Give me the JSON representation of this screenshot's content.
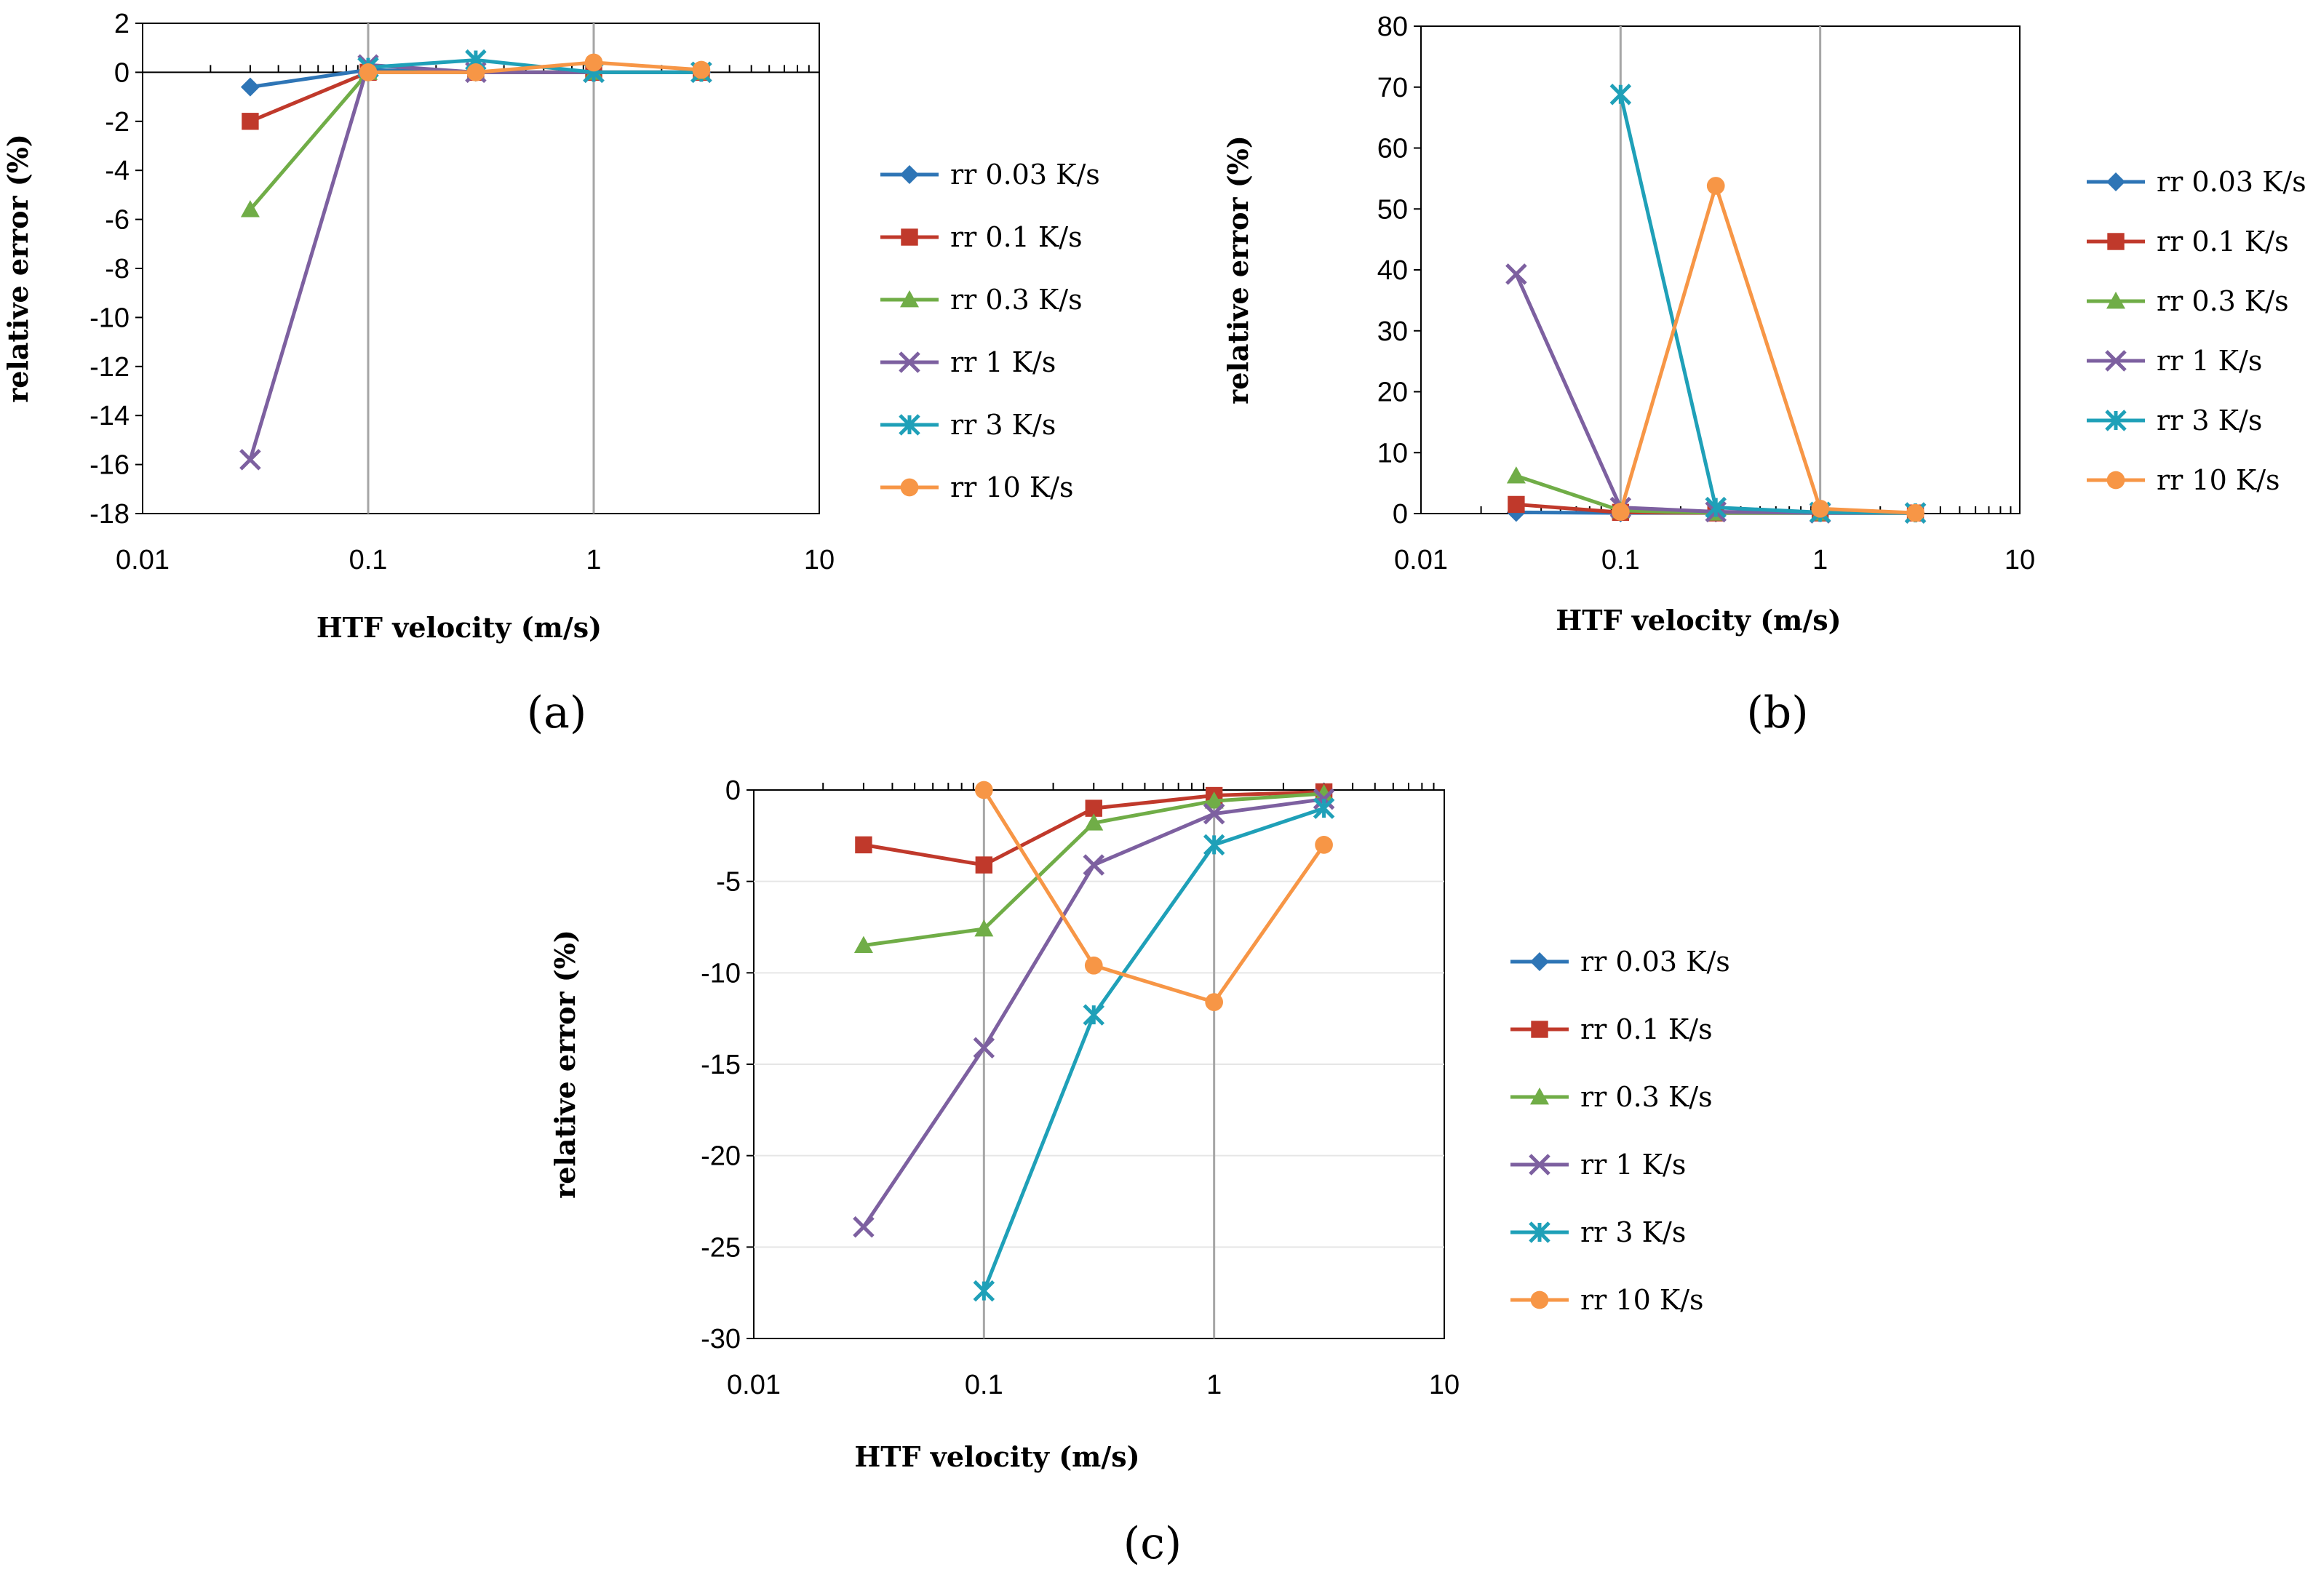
{
  "chart_data": [
    {
      "type": "line",
      "panel": "a",
      "caption": "(a)",
      "xlabel": "HTF velocity (m/s)",
      "ylabel": "relative error (%)",
      "xscale": "log",
      "xlim": [
        0.01,
        10
      ],
      "ylim": [
        -18,
        2
      ],
      "xticks": [
        0.01,
        0.1,
        1,
        10
      ],
      "xtick_labels": [
        "0.01",
        "0.1",
        "1",
        "10"
      ],
      "yticks": [
        2,
        0,
        -2,
        -4,
        -6,
        -8,
        -10,
        -12,
        -14,
        -16,
        -18
      ],
      "ytick_labels": [
        "2",
        "0",
        "-2",
        "-4",
        "-6",
        "-8",
        "-10",
        "-12",
        "-14",
        "-16",
        "-18"
      ],
      "legend_position": "right",
      "x": [
        0.03,
        0.1,
        0.3,
        1,
        3
      ],
      "series": [
        {
          "name": "rr 0.03 K/s",
          "color": "#2E75B6",
          "marker": "diamond",
          "values": [
            -0.6,
            0.1,
            0.0,
            0.0,
            0.0
          ]
        },
        {
          "name": "rr 0.1 K/s",
          "color": "#C0392B",
          "marker": "square",
          "values": [
            -2.0,
            0.0,
            0.0,
            0.0,
            0.0
          ]
        },
        {
          "name": "rr 0.3 K/s",
          "color": "#70AD47",
          "marker": "triangle",
          "values": [
            -5.6,
            0.0,
            0.0,
            0.0,
            0.0
          ]
        },
        {
          "name": "rr 1 K/s",
          "color": "#7D60A0",
          "marker": "x",
          "values": [
            -15.8,
            0.3,
            0.0,
            0.0,
            0.0
          ]
        },
        {
          "name": "rr 3 K/s",
          "color": "#1FA0B8",
          "marker": "star",
          "values": [
            null,
            0.2,
            0.5,
            0.0,
            0.0
          ]
        },
        {
          "name": "rr 10 K/s",
          "color": "#F79646",
          "marker": "circle",
          "values": [
            null,
            0.0,
            0.0,
            0.4,
            0.1
          ]
        }
      ]
    },
    {
      "type": "line",
      "panel": "b",
      "caption": "(b)",
      "xlabel": "HTF velocity (m/s)",
      "ylabel": "relative error (%)",
      "xscale": "log",
      "xlim": [
        0.01,
        10
      ],
      "ylim": [
        0,
        80
      ],
      "xticks": [
        0.01,
        0.1,
        1,
        10
      ],
      "xtick_labels": [
        "0.01",
        "0.1",
        "1",
        "10"
      ],
      "yticks": [
        80,
        70,
        60,
        50,
        40,
        30,
        20,
        10,
        0
      ],
      "ytick_labels": [
        "80",
        "70",
        "60",
        "50",
        "40",
        "30",
        "20",
        "10",
        "0"
      ],
      "legend_position": "right",
      "x": [
        0.03,
        0.1,
        0.3,
        1,
        3
      ],
      "series": [
        {
          "name": "rr 0.03 K/s",
          "color": "#2E75B6",
          "marker": "diamond",
          "values": [
            0.2,
            0.1,
            0.1,
            0.1,
            0.1
          ]
        },
        {
          "name": "rr 0.1 K/s",
          "color": "#C0392B",
          "marker": "square",
          "values": [
            1.5,
            0.2,
            0.1,
            0.1,
            0.1
          ]
        },
        {
          "name": "rr 0.3 K/s",
          "color": "#70AD47",
          "marker": "triangle",
          "values": [
            6.2,
            0.5,
            0.1,
            0.1,
            0.1
          ]
        },
        {
          "name": "rr 1 K/s",
          "color": "#7D60A0",
          "marker": "x",
          "values": [
            39.3,
            1.0,
            0.3,
            0.1,
            0.1
          ]
        },
        {
          "name": "rr 3 K/s",
          "color": "#1FA0B8",
          "marker": "star",
          "values": [
            null,
            68.8,
            1.0,
            0.2,
            0.1
          ]
        },
        {
          "name": "rr 10 K/s",
          "color": "#F79646",
          "marker": "circle",
          "values": [
            null,
            0.3,
            53.8,
            0.8,
            0.1
          ]
        }
      ]
    },
    {
      "type": "line",
      "panel": "c",
      "caption": "(c)",
      "xlabel": "HTF velocity (m/s)",
      "ylabel": "relative error (%)",
      "xscale": "log",
      "xlim": [
        0.01,
        10
      ],
      "ylim": [
        -30,
        0
      ],
      "xticks": [
        0.01,
        0.1,
        1,
        10
      ],
      "xtick_labels": [
        "0.01",
        "0.1",
        "1",
        "10"
      ],
      "yticks": [
        0,
        -5,
        -10,
        -15,
        -20,
        -25,
        -30
      ],
      "ytick_labels": [
        "0",
        "-5",
        "-10",
        "-15",
        "-20",
        "-25",
        "-30"
      ],
      "legend_position": "right",
      "x": [
        0.03,
        0.1,
        0.3,
        1,
        3
      ],
      "series": [
        {
          "name": "rr 0.03 K/s",
          "color": "#2E75B6",
          "marker": "diamond",
          "values": [
            null,
            null,
            null,
            null,
            -0.1
          ]
        },
        {
          "name": "rr 0.1 K/s",
          "color": "#C0392B",
          "marker": "square",
          "values": [
            -3.0,
            -4.1,
            -1.0,
            -0.3,
            -0.1
          ]
        },
        {
          "name": "rr 0.3 K/s",
          "color": "#70AD47",
          "marker": "triangle",
          "values": [
            -8.5,
            -7.6,
            -1.8,
            -0.6,
            -0.2
          ]
        },
        {
          "name": "rr 1 K/s",
          "color": "#7D60A0",
          "marker": "x",
          "values": [
            -23.9,
            -14.1,
            -4.1,
            -1.3,
            -0.5
          ]
        },
        {
          "name": "rr 3 K/s",
          "color": "#1FA0B8",
          "marker": "star",
          "values": [
            null,
            -27.4,
            -12.3,
            -3.0,
            -1.0
          ]
        },
        {
          "name": "rr 10 K/s",
          "color": "#F79646",
          "marker": "circle",
          "values": [
            null,
            0.0,
            -9.6,
            -11.6,
            -3.0
          ]
        }
      ]
    }
  ]
}
